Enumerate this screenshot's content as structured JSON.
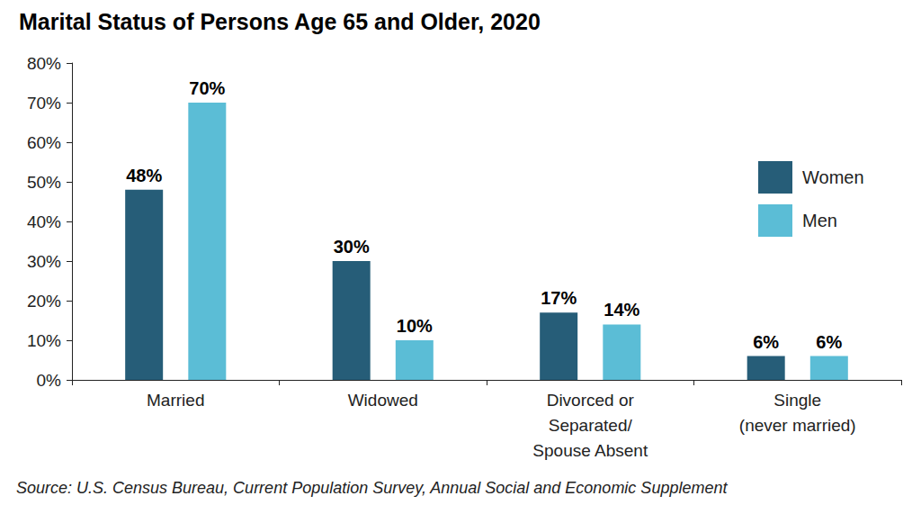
{
  "chart_data": {
    "type": "bar",
    "title": "Marital Status of Persons Age 65 and Older, 2020",
    "annotation": "Source: U.S. Census Bureau, Current Population Survey, Annual Social and Economic Supplement",
    "categories": [
      "Married",
      "Widowed",
      "Divorced or\nSeparated/\nSpouse Absent",
      "Single\n(never married)"
    ],
    "series": [
      {
        "name": "Women",
        "color": "#265d78",
        "values": [
          48,
          30,
          17,
          6
        ],
        "value_labels": [
          "48%",
          "30%",
          "17%",
          "6%"
        ]
      },
      {
        "name": "Men",
        "color": "#5bbdd6",
        "values": [
          70,
          10,
          14,
          6
        ],
        "value_labels": [
          "70%",
          "10%",
          "14%",
          "6%"
        ]
      }
    ],
    "ylim": [
      0,
      80
    ],
    "yticks": [
      {
        "value": 0,
        "label": "0%"
      },
      {
        "value": 10,
        "label": "10%"
      },
      {
        "value": 20,
        "label": "20%"
      },
      {
        "value": 30,
        "label": "30%"
      },
      {
        "value": 40,
        "label": "40%"
      },
      {
        "value": 50,
        "label": "50%"
      },
      {
        "value": 60,
        "label": "60%"
      },
      {
        "value": 70,
        "label": "70%"
      },
      {
        "value": 80,
        "label": "80%"
      }
    ],
    "grid": false,
    "legend": "right",
    "data_labels": true
  }
}
